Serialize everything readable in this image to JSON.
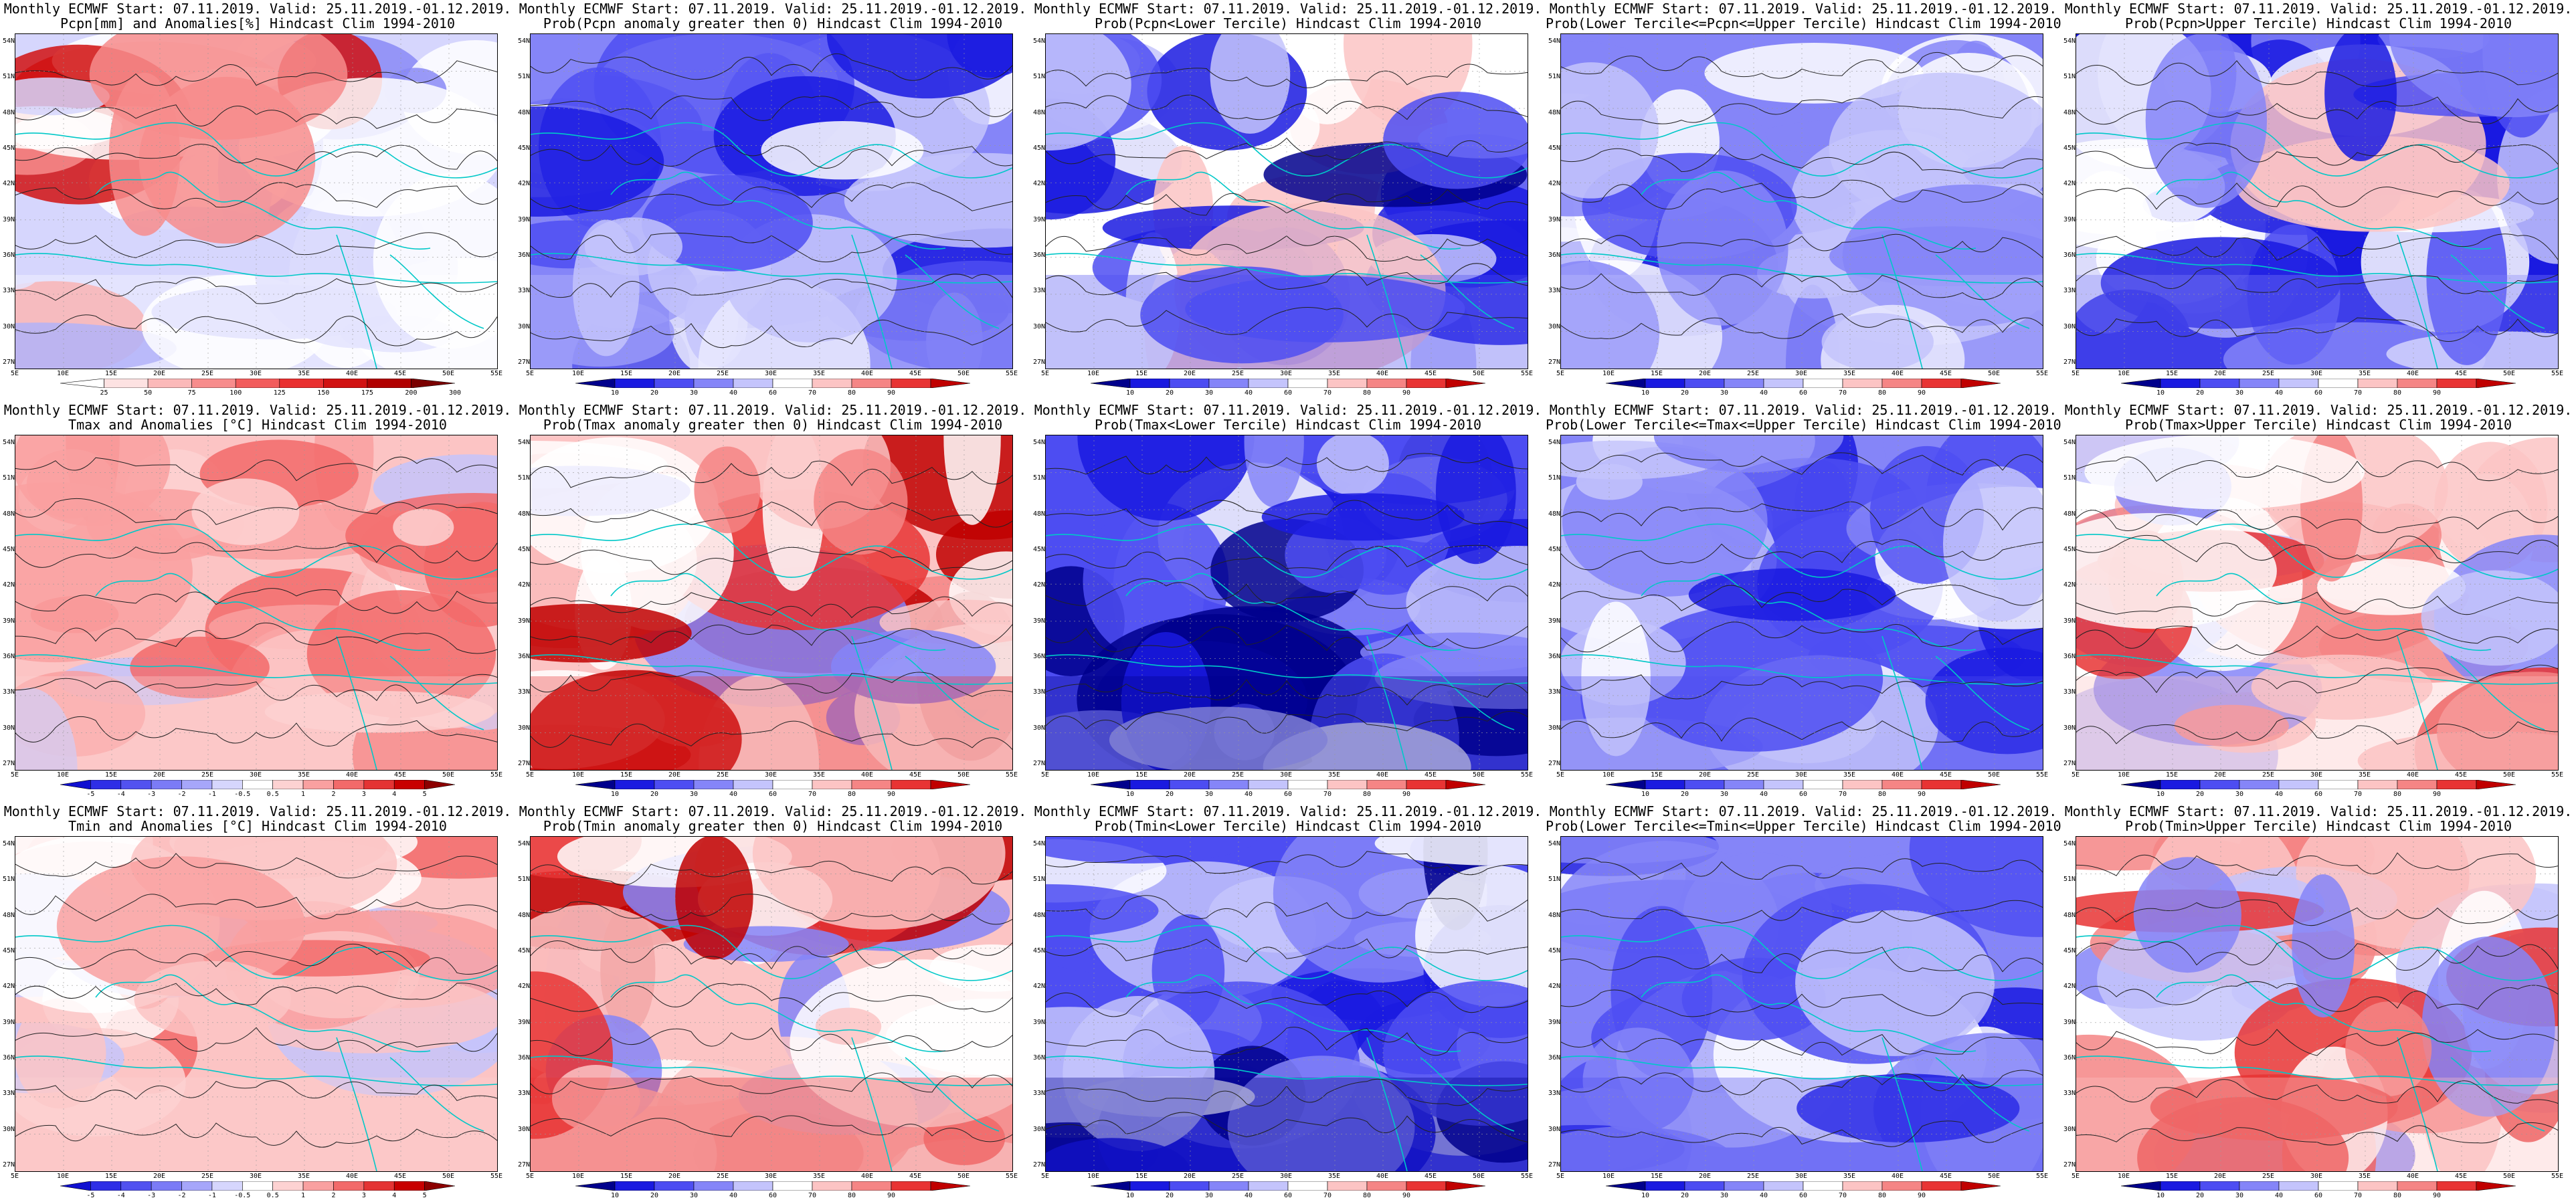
{
  "common": {
    "line1": "Monthly ECMWF Start: 07.11.2019. Valid: 25.11.2019.-01.12.2019.",
    "lat_ticks": [
      "54N",
      "51N",
      "48N",
      "45N",
      "42N",
      "39N",
      "36N",
      "33N",
      "30N",
      "27N"
    ],
    "lon_ticks": [
      "5E",
      "10E",
      "15E",
      "20E",
      "25E",
      "30E",
      "35E",
      "40E",
      "45E",
      "50E",
      "55E"
    ]
  },
  "scales": {
    "pcpn": {
      "ticks": [
        "25",
        "50",
        "75",
        "100",
        "125",
        "150",
        "175",
        "200",
        "300"
      ],
      "colors": [
        "#ffffff",
        "#fde2e2",
        "#fbb9b9",
        "#f78c8c",
        "#f25c5c",
        "#e93030",
        "#d11212",
        "#b00000",
        "#7a0000"
      ]
    },
    "anom": {
      "ticks": [
        "-5",
        "-4",
        "-3",
        "-2",
        "-1",
        "-0.5",
        "0.5",
        "1",
        "2",
        "3",
        "4",
        "5"
      ],
      "colors": [
        "#1010d0",
        "#2e2ee6",
        "#5252f0",
        "#7b7bf6",
        "#a6a6fa",
        "#d6d6fd",
        "#ffffff",
        "#fdd2d2",
        "#f9a0a0",
        "#f26a6a",
        "#e43434",
        "#c80000",
        "#8c0000"
      ]
    },
    "prob": {
      "ticks": [
        "10",
        "20",
        "30",
        "40",
        "60",
        "70",
        "80",
        "90"
      ],
      "colors": [
        "#00008c",
        "#1a1ae0",
        "#4d4df2",
        "#8585f8",
        "#c4c4fc",
        "#ffffff",
        "#fcc4c4",
        "#f58585",
        "#e83434",
        "#c00000"
      ]
    }
  },
  "panels": [
    {
      "line2": "Pcpn[mm] and Anomalies[%] Hindcast Clim 1994-2010",
      "scale": "pcpn",
      "theme": "pcpn"
    },
    {
      "line2": "Prob(Pcpn anomaly greater then 0) Hindcast Clim 1994-2010",
      "scale": "prob",
      "theme": "pwet"
    },
    {
      "line2": "Prob(Pcpn<Lower Tercile) Hindcast Clim 1994-2010",
      "scale": "prob",
      "theme": "pdry"
    },
    {
      "line2": "Prob(Lower Tercile<=Pcpn<=Upper Tercile) Hindcast Clim 1994-2010",
      "scale": "prob",
      "theme": "pmid"
    },
    {
      "line2": "Prob(Pcpn>Upper Tercile) Hindcast Clim 1994-2010",
      "scale": "prob",
      "theme": "pup"
    },
    {
      "line2": "Tmax and Anomalies [°C] Hindcast Clim 1994-2010",
      "scale": "anom",
      "theme": "warm"
    },
    {
      "line2": "Prob(Tmax anomaly greater then 0) Hindcast Clim 1994-2010",
      "scale": "prob",
      "theme": "hot"
    },
    {
      "line2": "Prob(Tmax<Lower Tercile) Hindcast Clim 1994-2010",
      "scale": "prob",
      "theme": "cold"
    },
    {
      "line2": "Prob(Lower Tercile<=Tmax<=Upper Tercile) Hindcast Clim 1994-2010",
      "scale": "prob",
      "theme": "mid"
    },
    {
      "line2": "Prob(Tmax>Upper Tercile) Hindcast Clim 1994-2010",
      "scale": "prob",
      "theme": "mixed"
    },
    {
      "line2": "Tmin and Anomalies [°C] Hindcast Clim 1994-2010",
      "scale": "anom",
      "theme": "warm"
    },
    {
      "line2": "Prob(Tmin anomaly greater then 0) Hindcast Clim 1994-2010",
      "scale": "prob",
      "theme": "hot"
    },
    {
      "line2": "Prob(Tmin<Lower Tercile) Hindcast Clim 1994-2010",
      "scale": "prob",
      "theme": "cold"
    },
    {
      "line2": "Prob(Lower Tercile<=Tmin<=Upper Tercile) Hindcast Clim 1994-2010",
      "scale": "prob",
      "theme": "mid"
    },
    {
      "line2": "Prob(Tmin>Upper Tercile) Hindcast Clim 1994-2010",
      "scale": "prob",
      "theme": "mixed"
    }
  ]
}
